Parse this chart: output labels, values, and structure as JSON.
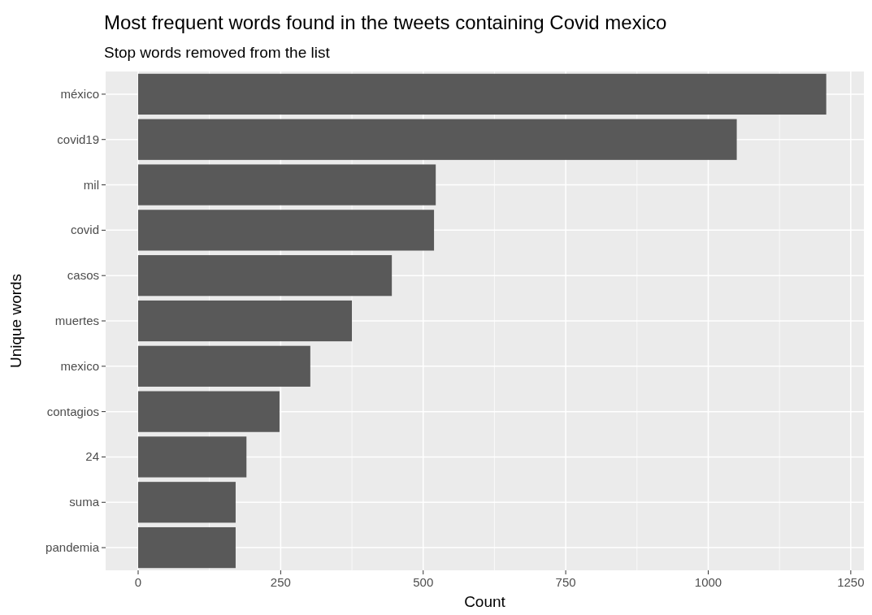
{
  "chart_data": {
    "type": "bar",
    "orientation": "horizontal",
    "title": "Most frequent words found in the tweets containing Covid mexico",
    "subtitle": "Stop words removed from the list",
    "xlabel": "Count",
    "ylabel": "Unique words",
    "categories": [
      "méxico",
      "covid19",
      "mil",
      "covid",
      "casos",
      "muertes",
      "mexico",
      "contagios",
      "24",
      "suma",
      "pandemia"
    ],
    "values": [
      1207,
      1050,
      522,
      519,
      445,
      375,
      302,
      248,
      190,
      171,
      171
    ],
    "color": "#595959",
    "xlim": [
      -57,
      1273
    ],
    "xticks": [
      0,
      250,
      500,
      750,
      1000,
      1250
    ],
    "grid": true
  }
}
